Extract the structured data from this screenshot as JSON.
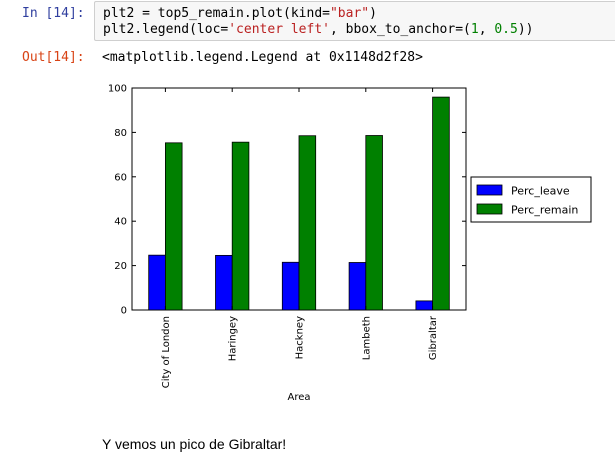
{
  "input_cell": {
    "prompt": "In [14]:",
    "code_lines": [
      [
        {
          "t": "plt2 = top5_remain.plot(kind=",
          "c": "plain"
        },
        {
          "t": "\"bar\"",
          "c": "str"
        },
        {
          "t": ")",
          "c": "plain"
        }
      ],
      [
        {
          "t": "plt2.legend(loc=",
          "c": "plain"
        },
        {
          "t": "'center left'",
          "c": "str"
        },
        {
          "t": ", bbox_to_anchor=(",
          "c": "plain"
        },
        {
          "t": "1",
          "c": "num"
        },
        {
          "t": ", ",
          "c": "plain"
        },
        {
          "t": "0.5",
          "c": "num"
        },
        {
          "t": "))",
          "c": "plain"
        }
      ]
    ]
  },
  "output_cell": {
    "prompt": "Out[14]:",
    "text": "<matplotlib.legend.Legend at 0x1148d2f28>"
  },
  "chart_data": {
    "type": "bar",
    "categories": [
      "City of London",
      "Haringey",
      "Hackney",
      "Lambeth",
      "Gibraltar"
    ],
    "series": [
      {
        "name": "Perc_leave",
        "values": [
          24.7,
          24.6,
          21.5,
          21.4,
          4.1
        ],
        "color": "#0000ff"
      },
      {
        "name": "Perc_remain",
        "values": [
          75.3,
          75.6,
          78.5,
          78.6,
          95.9
        ],
        "color": "#008000"
      }
    ],
    "xlabel": "Area",
    "ylabel": "",
    "ylim": [
      0,
      100
    ],
    "yticks": [
      0,
      20,
      40,
      60,
      80,
      100
    ],
    "legend_position": "center-left outside right",
    "grid": false
  },
  "markdown": {
    "text": "Y vemos un pico de Gibraltar!"
  }
}
